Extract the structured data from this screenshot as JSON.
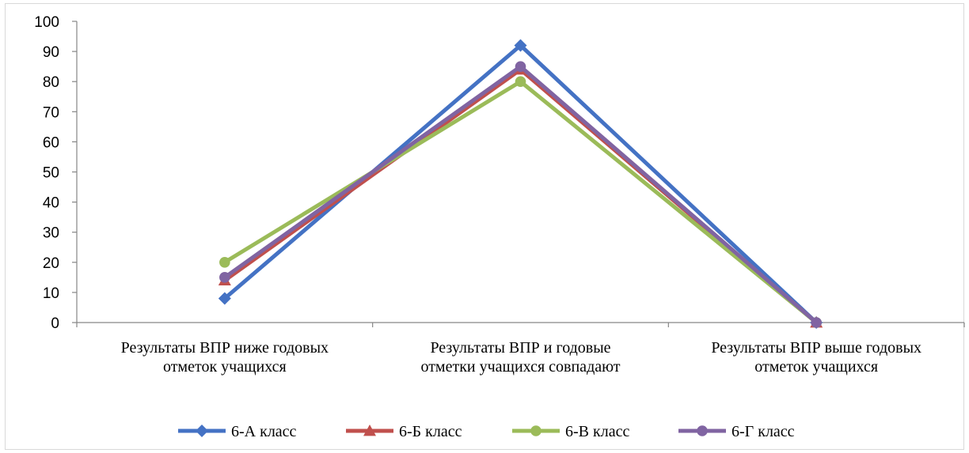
{
  "chart_data": {
    "type": "line",
    "title": "",
    "xlabel": "",
    "ylabel": "",
    "ylim": [
      0,
      100
    ],
    "yticks": [
      0,
      10,
      20,
      30,
      40,
      50,
      60,
      70,
      80,
      90,
      100
    ],
    "categories": [
      [
        "Результаты ВПР ниже годовых",
        "отметок учащихся"
      ],
      [
        "Результаты ВПР и годовые",
        "отметки учащихся совпадают"
      ],
      [
        "Результаты ВПР выше годовых",
        "отметок учащихся"
      ]
    ],
    "grid": false,
    "legend_position": "bottom",
    "series": [
      {
        "name": "6-А класс",
        "values": [
          8,
          92,
          0
        ],
        "color": "#4472c4",
        "marker": "diamond"
      },
      {
        "name": "6-Б класс",
        "values": [
          14,
          84,
          0
        ],
        "color": "#c0504d",
        "marker": "triangle"
      },
      {
        "name": "6-В класс",
        "values": [
          20,
          80,
          0
        ],
        "color": "#9bbb59",
        "marker": "circle"
      },
      {
        "name": "6-Г класс",
        "values": [
          15,
          85,
          0
        ],
        "color": "#8064a2",
        "marker": "circle"
      }
    ]
  }
}
